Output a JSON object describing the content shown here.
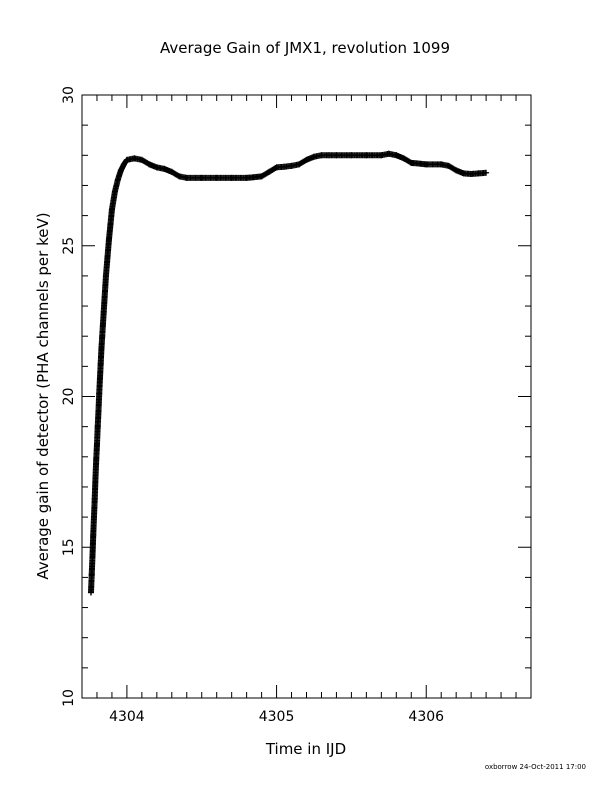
{
  "chart_data": {
    "type": "scatter",
    "title": "Average Gain of JMX1, revolution 1099",
    "xlabel": "Time in IJD",
    "ylabel": "Average gain of detector (PHA channels per keV)",
    "xlim": [
      4303.7,
      4306.7
    ],
    "ylim": [
      10,
      30
    ],
    "x_ticks": [
      "4304",
      "4305",
      "4306"
    ],
    "y_ticks": [
      "10",
      "15",
      "20",
      "25",
      "30"
    ],
    "grid": false,
    "marker": "plus",
    "colors": {
      "marker": "#000000",
      "axis": "#000000"
    },
    "series": [
      {
        "x": [
          4303.76,
          4303.765,
          4303.77,
          4303.775,
          4303.78,
          4303.785,
          4303.79,
          4303.795,
          4303.8,
          4303.805,
          4303.81,
          4303.815,
          4303.82,
          4303.825,
          4303.83,
          4303.835,
          4303.84,
          4303.845,
          4303.85,
          4303.855,
          4303.86,
          4303.87,
          4303.88,
          4303.89,
          4303.9,
          4303.92,
          4303.94,
          4303.96,
          4303.98,
          4304.0,
          4304.05,
          4304.1,
          4304.15,
          4304.2,
          4304.25,
          4304.3,
          4304.35,
          4304.4,
          4304.5,
          4304.6,
          4304.7,
          4304.8,
          4304.9,
          4304.95,
          4305.0,
          4305.05,
          4305.1,
          4305.15,
          4305.2,
          4305.25,
          4305.3,
          4305.35,
          4305.4,
          4305.5,
          4305.6,
          4305.7,
          4305.75,
          4305.8,
          4305.85,
          4305.9,
          4306.0,
          4306.1,
          4306.15,
          4306.2,
          4306.25,
          4306.3,
          4306.35,
          4306.4
        ],
        "y": [
          13.5,
          14.1,
          14.7,
          15.4,
          16.0,
          16.6,
          17.3,
          17.9,
          18.4,
          19.0,
          19.5,
          20.1,
          20.6,
          21.1,
          21.6,
          22.0,
          22.4,
          22.8,
          23.2,
          23.6,
          24.0,
          24.6,
          25.2,
          25.7,
          26.2,
          26.8,
          27.2,
          27.5,
          27.7,
          27.85,
          27.9,
          27.85,
          27.7,
          27.6,
          27.55,
          27.45,
          27.3,
          27.25,
          27.25,
          27.25,
          27.25,
          27.25,
          27.3,
          27.45,
          27.6,
          27.62,
          27.65,
          27.7,
          27.85,
          27.95,
          28.0,
          28.0,
          28.0,
          28.0,
          28.0,
          28.0,
          28.05,
          28.0,
          27.9,
          27.75,
          27.7,
          27.7,
          27.65,
          27.5,
          27.4,
          27.38,
          27.4,
          27.42
        ]
      }
    ],
    "credit": "oxborrow 24-Oct-2011 17:00"
  }
}
